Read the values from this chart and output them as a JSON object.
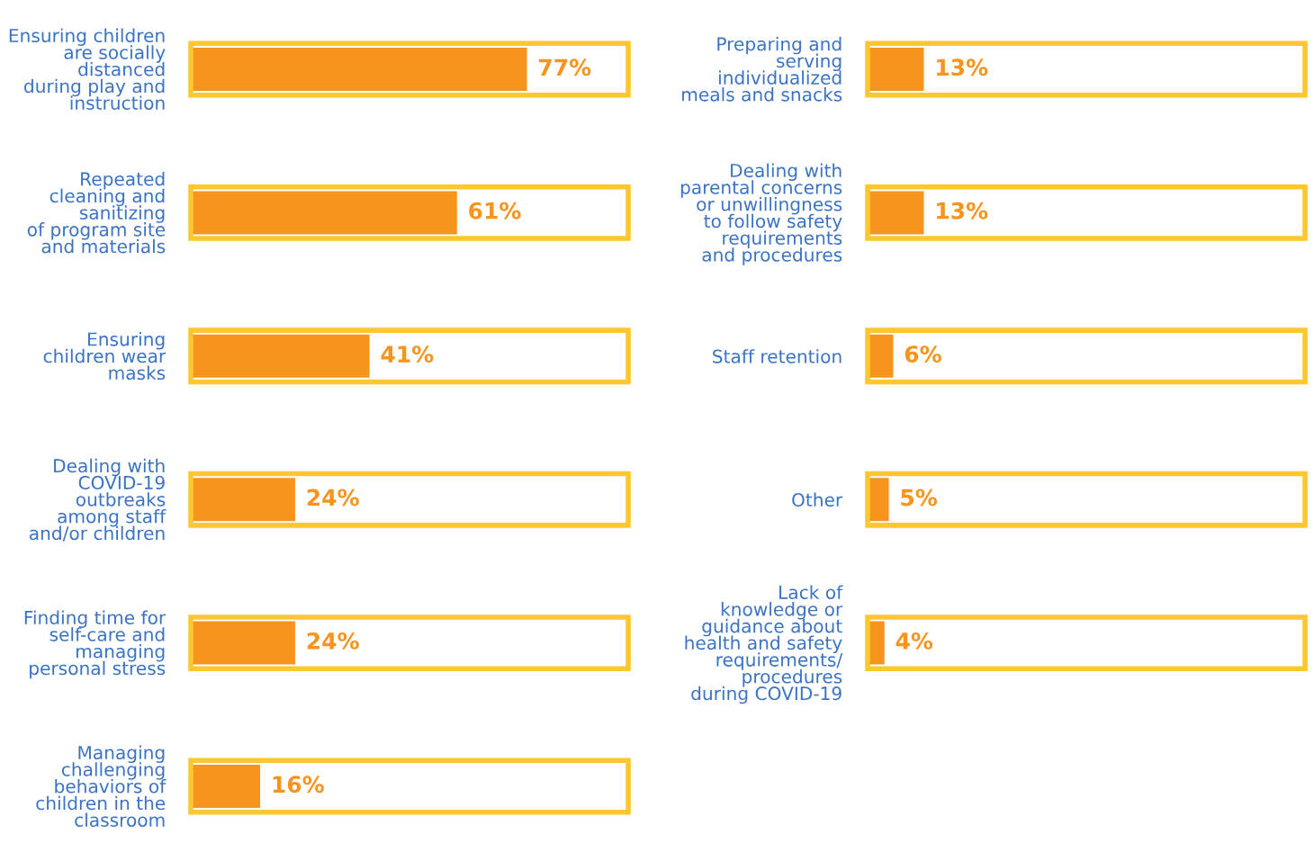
{
  "chart_data": [
    {
      "type": "bar",
      "orientation": "horizontal",
      "categories": [
        "Ensuring children\nare socially\ndistanced\nduring play and\ninstruction",
        "Repeated\ncleaning and\nsanitizing\nof program site\nand materials",
        "Ensuring\nchildren wear\nmasks",
        "Dealing with\nCOVID-19\noutbreaks\namong staff\nand/or children",
        "Finding time for\nself-care and\nmanaging\npersonal stress",
        "Managing\nchallenging\nbehaviors of\nchildren in the\nclassroom"
      ],
      "series": [
        {
          "color": "#fdc82f",
          "values": [
            100,
            100,
            100,
            100,
            100,
            100
          ]
        },
        {
          "color": "#f7941d",
          "values": [
            77,
            61,
            41,
            24,
            24,
            16
          ],
          "value_labels": [
            "77%",
            "61%",
            "41%",
            "24%",
            "24%",
            "16%"
          ]
        }
      ],
      "xlim": [
        0,
        100
      ],
      "tick_labels": "y"
    },
    {
      "type": "bar",
      "orientation": "horizontal",
      "categories": [
        "Preparing and\nserving\nindividualized\nmeals and snacks",
        "Dealing with\nparental concerns\nor unwillingness\nto follow safety\nrequirements\nand procedures",
        "Staff retention",
        "Other",
        "Lack of\nknowledge or\nguidance about\nhealth and safety\nrequirements/\nprocedures\nduring COVID-19"
      ],
      "series": [
        {
          "color": "#fdc82f",
          "values": [
            100,
            100,
            100,
            100,
            100
          ]
        },
        {
          "color": "#f7941d",
          "values": [
            13,
            13,
            6,
            5,
            4
          ],
          "value_labels": [
            "13%",
            "13%",
            "6%",
            "5%",
            "4%"
          ]
        }
      ],
      "xlim": [
        0,
        100
      ],
      "tick_labels": "y"
    }
  ]
}
